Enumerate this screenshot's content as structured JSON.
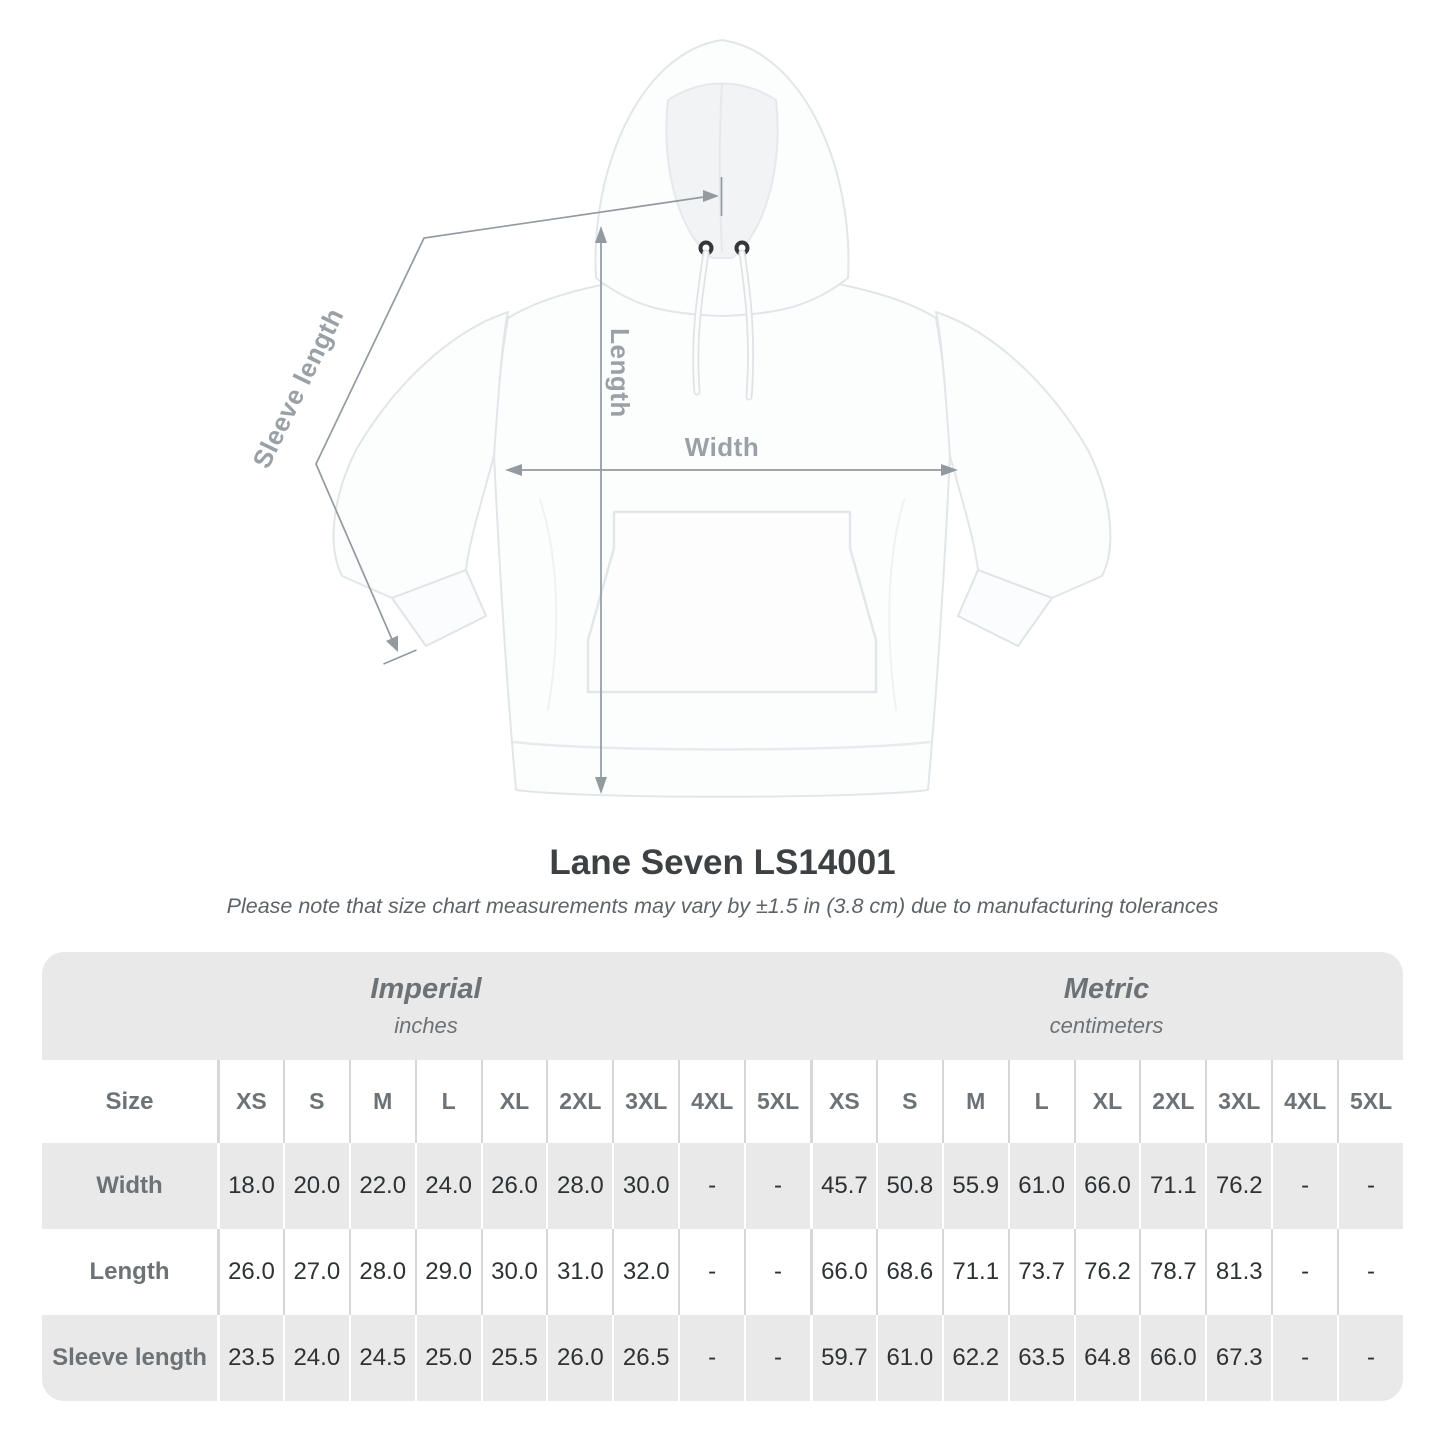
{
  "diagram": {
    "sleeve_label": "Sleeve length",
    "length_label": "Length",
    "width_label": "Width"
  },
  "title": "Lane Seven LS14001",
  "note": "Please note that size chart measurements may vary by ±1.5 in (3.8 cm) due to manufacturing tolerances",
  "colors": {
    "annotation_gray": "#939aa0",
    "label_gray": "#9aa1a6",
    "table_band_gray": "#e9e9e9",
    "divider_on_white": "#d7d7d7",
    "divider_on_gray": "#ffffff",
    "heading_text": "#6c7276",
    "value_text": "#2f3234"
  },
  "table": {
    "size_label": "Size",
    "unit_groups": [
      {
        "name": "Imperial",
        "unit": "inches"
      },
      {
        "name": "Metric",
        "unit": "centimeters"
      }
    ],
    "sizes": [
      "XS",
      "S",
      "M",
      "L",
      "XL",
      "2XL",
      "3XL",
      "4XL",
      "5XL"
    ],
    "rows": [
      {
        "label": "Width",
        "imperial": [
          "18.0",
          "20.0",
          "22.0",
          "24.0",
          "26.0",
          "28.0",
          "30.0",
          "-",
          "-"
        ],
        "metric": [
          "45.7",
          "50.8",
          "55.9",
          "61.0",
          "66.0",
          "71.1",
          "76.2",
          "-",
          "-"
        ]
      },
      {
        "label": "Length",
        "imperial": [
          "26.0",
          "27.0",
          "28.0",
          "29.0",
          "30.0",
          "31.0",
          "32.0",
          "-",
          "-"
        ],
        "metric": [
          "66.0",
          "68.6",
          "71.1",
          "73.7",
          "76.2",
          "78.7",
          "81.3",
          "-",
          "-"
        ]
      },
      {
        "label": "Sleeve length",
        "imperial": [
          "23.5",
          "24.0",
          "24.5",
          "25.0",
          "25.5",
          "26.0",
          "26.5",
          "-",
          "-"
        ],
        "metric": [
          "59.7",
          "61.0",
          "62.2",
          "63.5",
          "64.8",
          "66.0",
          "67.3",
          "-",
          "-"
        ]
      }
    ]
  }
}
